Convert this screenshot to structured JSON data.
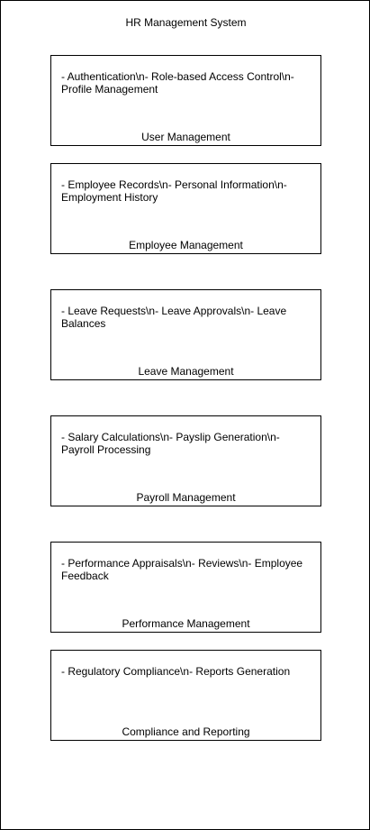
{
  "diagram": {
    "title": "HR Management System",
    "modules": [
      {
        "name": "User Management",
        "description": "- Authentication\\n- Role-based Access Control\\n- Profile Management"
      },
      {
        "name": "Employee Management",
        "description": "- Employee Records\\n- Personal Information\\n- Employment History"
      },
      {
        "name": "Leave Management",
        "description": "- Leave Requests\\n- Leave Approvals\\n- Leave Balances"
      },
      {
        "name": "Payroll Management",
        "description": "- Salary Calculations\\n- Payslip Generation\\n- Payroll Processing"
      },
      {
        "name": "Performance Management",
        "description": "- Performance Appraisals\\n- Reviews\\n- Employee Feedback"
      },
      {
        "name": "Compliance and Reporting",
        "description": "- Regulatory Compliance\\n- Reports Generation"
      }
    ]
  }
}
